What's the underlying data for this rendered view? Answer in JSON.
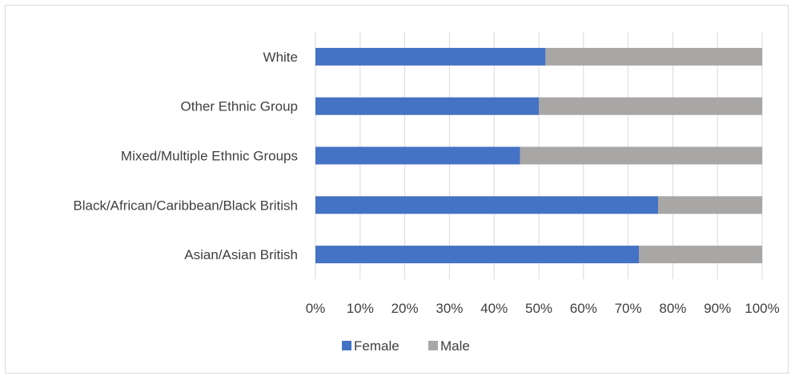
{
  "chart_data": {
    "type": "bar",
    "orientation": "horizontal",
    "stacked": "100%",
    "categories": [
      "White",
      "Other Ethnic Group",
      "Mixed/Multiple Ethnic Groups",
      "Black/African/Caribbean/Black British",
      "Asian/Asian British"
    ],
    "series": [
      {
        "name": "Female",
        "color": "#4472c4",
        "values": [
          51.5,
          50.0,
          45.8,
          76.7,
          72.4
        ]
      },
      {
        "name": "Male",
        "color": "#a9a6a6",
        "values": [
          48.5,
          50.0,
          54.2,
          23.3,
          27.6
        ]
      }
    ],
    "xlim": [
      0,
      100
    ],
    "x_ticks": [
      "0%",
      "10%",
      "20%",
      "30%",
      "40%",
      "50%",
      "60%",
      "70%",
      "80%",
      "90%",
      "100%"
    ],
    "grid": true,
    "legend_position": "bottom"
  }
}
